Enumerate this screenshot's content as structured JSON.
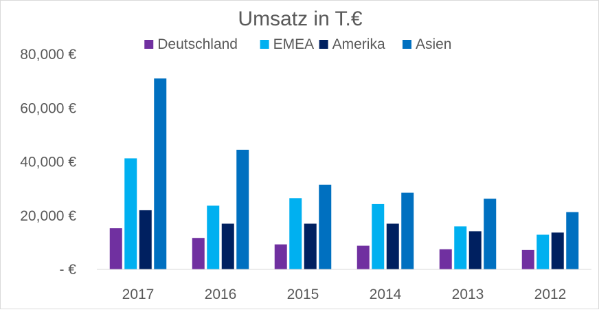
{
  "chart_data": {
    "type": "bar",
    "title": "Umsatz in T.€",
    "xlabel": "",
    "ylabel": "",
    "categories": [
      "2017",
      "2016",
      "2015",
      "2014",
      "2013",
      "2012"
    ],
    "series": [
      {
        "name": "Deutschland",
        "color": "#7030a0",
        "values": [
          15300,
          11700,
          9300,
          8800,
          7500,
          7200
        ]
      },
      {
        "name": "EMEA",
        "color": "#00b0f0",
        "values": [
          41300,
          23700,
          26500,
          24300,
          16000,
          12900
        ]
      },
      {
        "name": "Amerika",
        "color": "#002060",
        "values": [
          22000,
          17000,
          17000,
          17000,
          14200,
          13700
        ]
      },
      {
        "name": "Asien",
        "color": "#0070c0",
        "values": [
          71000,
          44500,
          31500,
          28500,
          26300,
          21300
        ]
      }
    ],
    "ylim": [
      0,
      80000
    ],
    "yticks": [
      0,
      20000,
      40000,
      60000,
      80000
    ],
    "ytick_labels": [
      "-   €",
      "20,000 €",
      "40,000 €",
      "60,000 €",
      "80,000 €"
    ],
    "legend_position": "top",
    "grid": false
  }
}
